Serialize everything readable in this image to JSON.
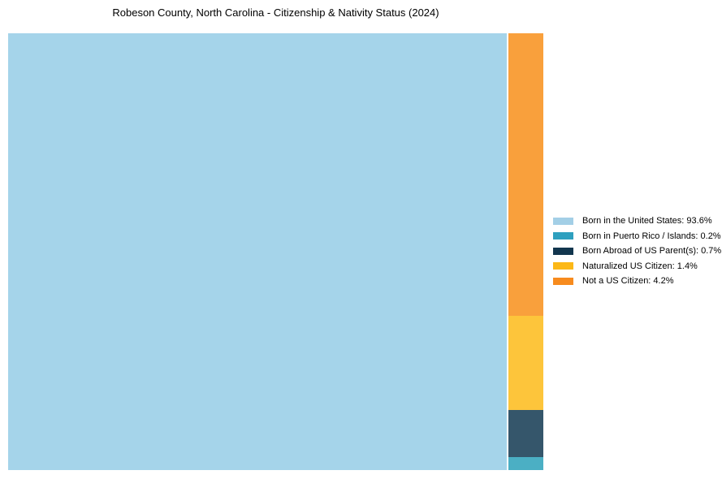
{
  "chart_data": {
    "type": "treemap",
    "title": "Robeson County, North Carolina - Citizenship & Nativity Status (2024)",
    "unit": "%",
    "total": 100,
    "legend_position": "right",
    "grid": false,
    "categories": [
      "Born in the United States",
      "Born in Puerto Rico / Islands",
      "Born Abroad of US Parent(s)",
      "Naturalized US Citizen",
      "Not a US Citizen"
    ],
    "values": [
      93.6,
      0.2,
      0.7,
      1.4,
      4.2
    ],
    "items": [
      {
        "label": "Born in the United States",
        "value": 93.6,
        "legend_color": "#A3CFE6",
        "fill": "#A5D4EA"
      },
      {
        "label": "Born in Puerto Rico / Islands",
        "value": 0.2,
        "legend_color": "#2EA0BF",
        "fill": "#4BAFC4"
      },
      {
        "label": "Born Abroad of US Parent(s)",
        "value": 0.7,
        "legend_color": "#12364E",
        "fill": "#35566B"
      },
      {
        "label": "Naturalized US Citizen",
        "value": 1.4,
        "legend_color": "#FCB817",
        "fill": "#FDC53B"
      },
      {
        "label": "Not a US Citizen",
        "value": 4.2,
        "legend_color": "#F78B1E",
        "fill": "#F9A03C"
      }
    ],
    "background_color": "#FFFFFF"
  }
}
